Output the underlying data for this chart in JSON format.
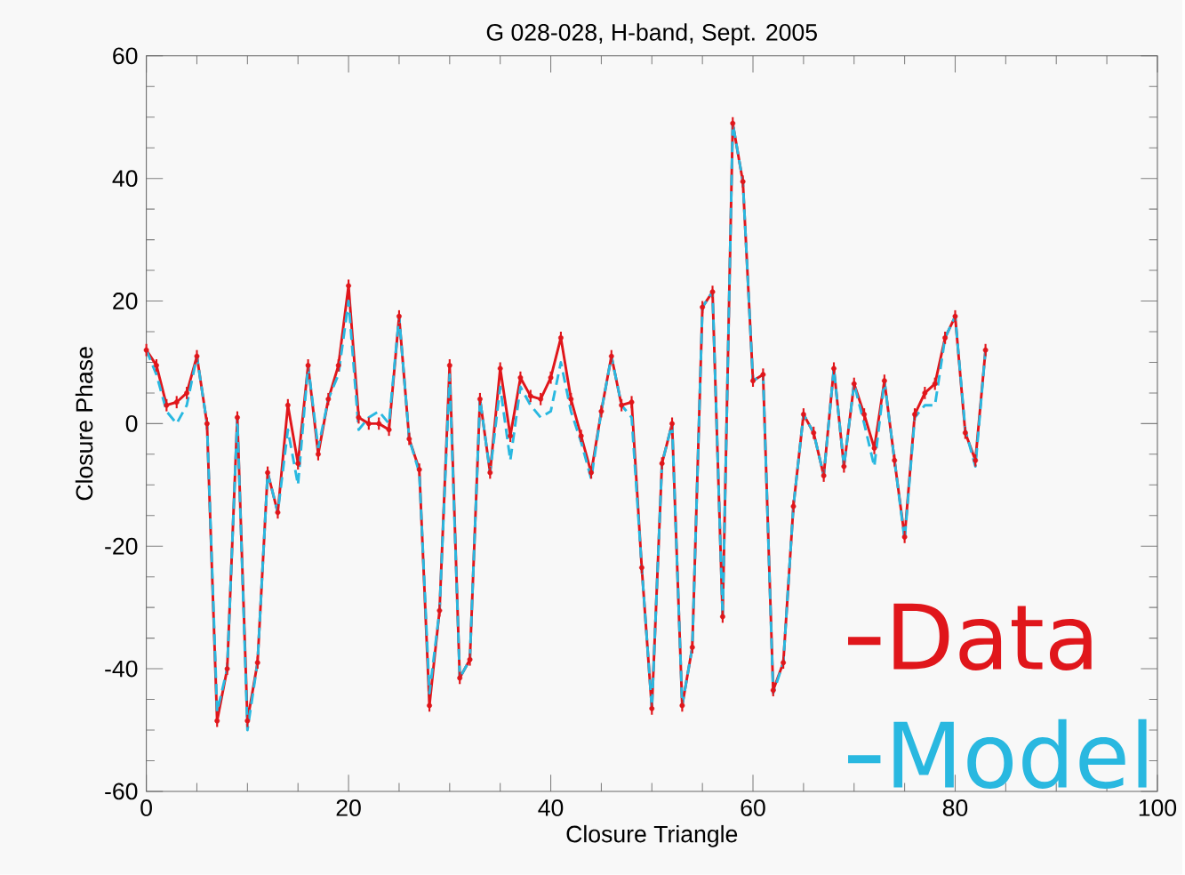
{
  "chart_data": {
    "type": "line",
    "title": "G 028-028, H-band, Sept. 2005",
    "xlabel": "Closure Triangle",
    "ylabel": "Closure Phase",
    "x": [
      0,
      1,
      2,
      3,
      4,
      5,
      6,
      7,
      8,
      9,
      10,
      11,
      12,
      13,
      14,
      15,
      16,
      17,
      18,
      19,
      20,
      21,
      22,
      23,
      24,
      25,
      26,
      27,
      28,
      29,
      30,
      31,
      32,
      33,
      34,
      35,
      36,
      37,
      38,
      39,
      40,
      41,
      42,
      43,
      44,
      45,
      46,
      47,
      48,
      49,
      50,
      51,
      52,
      53,
      54,
      55,
      56,
      57,
      58,
      59,
      60,
      61,
      62,
      63,
      64,
      65,
      66,
      67,
      68,
      69,
      70,
      71,
      72,
      73,
      74,
      75,
      76,
      77,
      78,
      79,
      80,
      81,
      82,
      83
    ],
    "series": [
      {
        "name": "Data",
        "color": "#e0161b",
        "line_style": "solid",
        "values": [
          12,
          9.5,
          3,
          3.5,
          5,
          11,
          0,
          -48.5,
          -40,
          1,
          -48.5,
          -39,
          -8,
          -14.5,
          3,
          -6.5,
          9.5,
          -5,
          4,
          9.5,
          22.5,
          1,
          0,
          0,
          -1,
          17.5,
          -2.5,
          -7.5,
          -46,
          -30.5,
          9.5,
          -41.5,
          -38.5,
          4,
          -8,
          9,
          -2,
          7.5,
          4.5,
          4,
          7.5,
          14,
          4,
          -2,
          -8,
          2,
          11,
          3,
          3.5,
          -23.5,
          -46.5,
          -6.5,
          0,
          -46,
          -36.5,
          19,
          21.5,
          -31.5,
          49,
          39.5,
          7,
          8,
          -43.5,
          -39,
          -13.5,
          1.5,
          -1.5,
          -8.5,
          9,
          -7,
          6.5,
          1.5,
          -4,
          7,
          -6,
          -18.5,
          1.5,
          5,
          6.5,
          14,
          17.5,
          -1.5,
          -6,
          12
        ],
        "errors": [
          1,
          1,
          1,
          1,
          1,
          1,
          1,
          1,
          1,
          1,
          1,
          1,
          1,
          1,
          1,
          1,
          1,
          1,
          1,
          1,
          1,
          1,
          1,
          1,
          1,
          1,
          1,
          1,
          1,
          1,
          1,
          1,
          1,
          1,
          1,
          1,
          1,
          1,
          1,
          1,
          1,
          1,
          1,
          1,
          1,
          1,
          1,
          1,
          1,
          1,
          1,
          1,
          1,
          1,
          1,
          1,
          1,
          1,
          1,
          1,
          1,
          1,
          1,
          1,
          1,
          1,
          1,
          1,
          1,
          1,
          1,
          1,
          1,
          1,
          1,
          1,
          1,
          1,
          1,
          1,
          1,
          1,
          1,
          1
        ]
      },
      {
        "name": "Model",
        "color": "#29b8e0",
        "line_style": "dashed",
        "values": [
          12,
          8,
          2,
          0,
          3,
          11,
          0,
          -47,
          -40,
          1,
          -50,
          -39,
          -8,
          -14.5,
          -1,
          -10,
          9.5,
          -4,
          4,
          8,
          20,
          -1,
          1,
          2,
          0,
          17.5,
          -2.5,
          -8,
          -44,
          -30.5,
          8,
          -41.5,
          -38.5,
          4,
          -8,
          6,
          -6,
          6,
          3,
          1,
          2,
          10,
          2,
          -3,
          -9,
          2,
          11,
          3,
          1,
          -23.5,
          -46.5,
          -6.5,
          0,
          -46,
          -36.5,
          19,
          21.5,
          -31.5,
          49,
          39.5,
          7,
          8,
          -44,
          -39,
          -13.5,
          1.5,
          -1.5,
          -8.5,
          9,
          -7,
          6.5,
          0,
          -7,
          7,
          -6,
          -19,
          1,
          3,
          3,
          14,
          17.5,
          -1,
          -7,
          12
        ]
      }
    ],
    "xlim": [
      0,
      100
    ],
    "xticks": [
      0,
      20,
      40,
      60,
      80,
      100
    ],
    "ylim": [
      -60,
      60
    ],
    "yticks": [
      -60,
      -40,
      -20,
      0,
      20,
      40,
      60
    ],
    "grid": false,
    "legend": "bottom right",
    "marker": "none"
  }
}
